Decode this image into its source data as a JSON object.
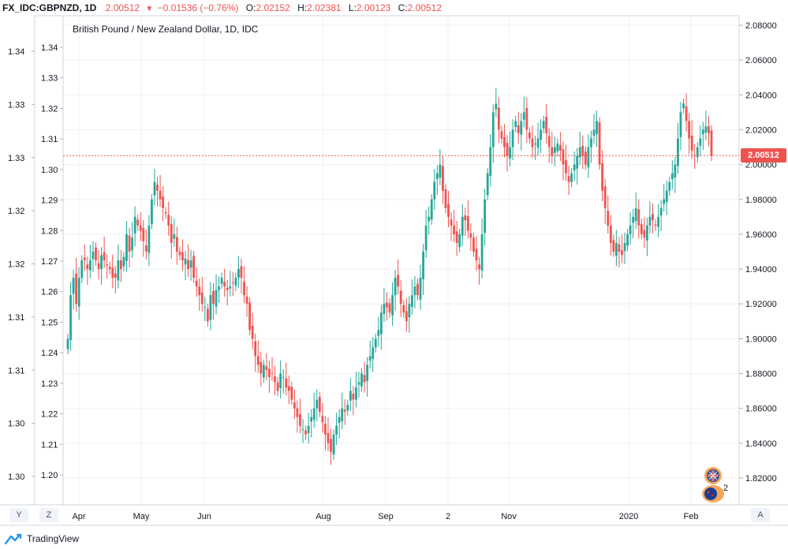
{
  "header": {
    "symbol": "FX_IDC:GBPNZD, 1D",
    "last": "2.00512",
    "change": "−0.01536 (−0.76%)",
    "o_label": "O:",
    "o_value": "2.02152",
    "h_label": "H:",
    "h_value": "2.02381",
    "l_label": "L:",
    "l_value": "2.00123",
    "c_label": "C:",
    "c_value": "2.00512"
  },
  "price_label": "2.00512",
  "buttons": {
    "left_y": "Y",
    "left_z": "Z",
    "right_a": "A"
  },
  "footer": {
    "brand": "TradingView"
  },
  "event_badge_count": "2",
  "colors": {
    "up": "#26a69a",
    "down": "#ef5350",
    "grid": "#eef0f3",
    "price_line": "#ef5350"
  },
  "chart_data": {
    "type": "candlestick",
    "title": "British Pound / New Zealand Dollar, 1D, IDC",
    "y_right": {
      "ticks": [
        "2.08000",
        "2.06000",
        "2.04000",
        "2.02000",
        "2.00000",
        "1.98000",
        "1.96000",
        "1.94000",
        "1.92000",
        "1.90000",
        "1.88000",
        "1.86000",
        "1.84000",
        "1.82000"
      ],
      "range": [
        1.8,
        2.085
      ]
    },
    "y_inner": {
      "ticks": [
        "1.34",
        "1.33",
        "1.32",
        "1.31",
        "1.30",
        "1.29",
        "1.28",
        "1.27",
        "1.26",
        "1.25",
        "1.24",
        "1.23",
        "1.22",
        "1.21",
        "1.20"
      ]
    },
    "y_left": {
      "ticks": [
        "1.34",
        "1.33",
        "1.33",
        "1.32",
        "1.32",
        "1.31",
        "1.31",
        "1.30",
        "1.30"
      ]
    },
    "x_labels": [
      "Apr",
      "May",
      "Jun",
      "Aug",
      "Sep",
      "2",
      "Nov",
      "2020",
      "Feb"
    ],
    "grid": true,
    "current_price": 2.00512,
    "series": [
      {
        "values": [
          1.9,
          1.925,
          1.935,
          1.92,
          1.935,
          1.945,
          1.945,
          1.94,
          1.945,
          1.95,
          1.945,
          1.94,
          1.948,
          1.945,
          1.942,
          1.94,
          1.935,
          1.935,
          1.945,
          1.94,
          1.947,
          1.96,
          1.95,
          1.958,
          1.97,
          1.965,
          1.962,
          1.956,
          1.95,
          1.965,
          1.98,
          1.99,
          1.985,
          1.98,
          1.975,
          1.972,
          1.965,
          1.955,
          1.96,
          1.95,
          1.948,
          1.945,
          1.946,
          1.94,
          1.945,
          1.935,
          1.93,
          1.925,
          1.92,
          1.918,
          1.91,
          1.925,
          1.92,
          1.928,
          1.93,
          1.935,
          1.93,
          1.928,
          1.93,
          1.932,
          1.935,
          1.94,
          1.935,
          1.925,
          1.92,
          1.905,
          1.9,
          1.89,
          1.885,
          1.88,
          1.885,
          1.882,
          1.878,
          1.88,
          1.875,
          1.87,
          1.88,
          1.878,
          1.872,
          1.87,
          1.865,
          1.86,
          1.855,
          1.85,
          1.848,
          1.845,
          1.85,
          1.855,
          1.86,
          1.865,
          1.858,
          1.852,
          1.845,
          1.84,
          1.835,
          1.845,
          1.85,
          1.855,
          1.86,
          1.858,
          1.862,
          1.87,
          1.865,
          1.872,
          1.875,
          1.88,
          1.875,
          1.885,
          1.89,
          1.895,
          1.9,
          1.905,
          1.915,
          1.92,
          1.918,
          1.915,
          1.925,
          1.935,
          1.93,
          1.92,
          1.915,
          1.91,
          1.92,
          1.925,
          1.93,
          1.925,
          1.935,
          1.95,
          1.965,
          1.97,
          1.98,
          1.99,
          1.995,
          2.0,
          1.985,
          1.975,
          1.97,
          1.965,
          1.96,
          1.955,
          1.96,
          1.97,
          1.968,
          1.962,
          1.958,
          1.95,
          1.945,
          1.94,
          1.96,
          1.98,
          1.995,
          2.01,
          2.03,
          2.035,
          2.02,
          2.015,
          2.01,
          2.005,
          2.01,
          2.02,
          2.025,
          2.018,
          2.025,
          2.03,
          2.02,
          2.015,
          2.01,
          2.012,
          2.015,
          2.02,
          2.025,
          2.018,
          2.01,
          2.005,
          2.01,
          2.012,
          2.008,
          2.0,
          1.995,
          1.99,
          1.995,
          2.0,
          2.005,
          2.01,
          2.005,
          2.0,
          2.01,
          2.015,
          2.02,
          2.025,
          2.0,
          1.985,
          1.975,
          1.965,
          1.955,
          1.95,
          1.955,
          1.95,
          1.948,
          1.955,
          1.96,
          1.965,
          1.97,
          1.975,
          1.965,
          1.96,
          1.958,
          1.965,
          1.97,
          1.968,
          1.965,
          1.97,
          1.975,
          1.98,
          1.985,
          1.99,
          1.995,
          2.0,
          2.015,
          2.03,
          2.035,
          2.025,
          2.015,
          2.008,
          2.005,
          2.01,
          2.015,
          2.02,
          2.022,
          2.018,
          2.005
        ]
      }
    ]
  }
}
